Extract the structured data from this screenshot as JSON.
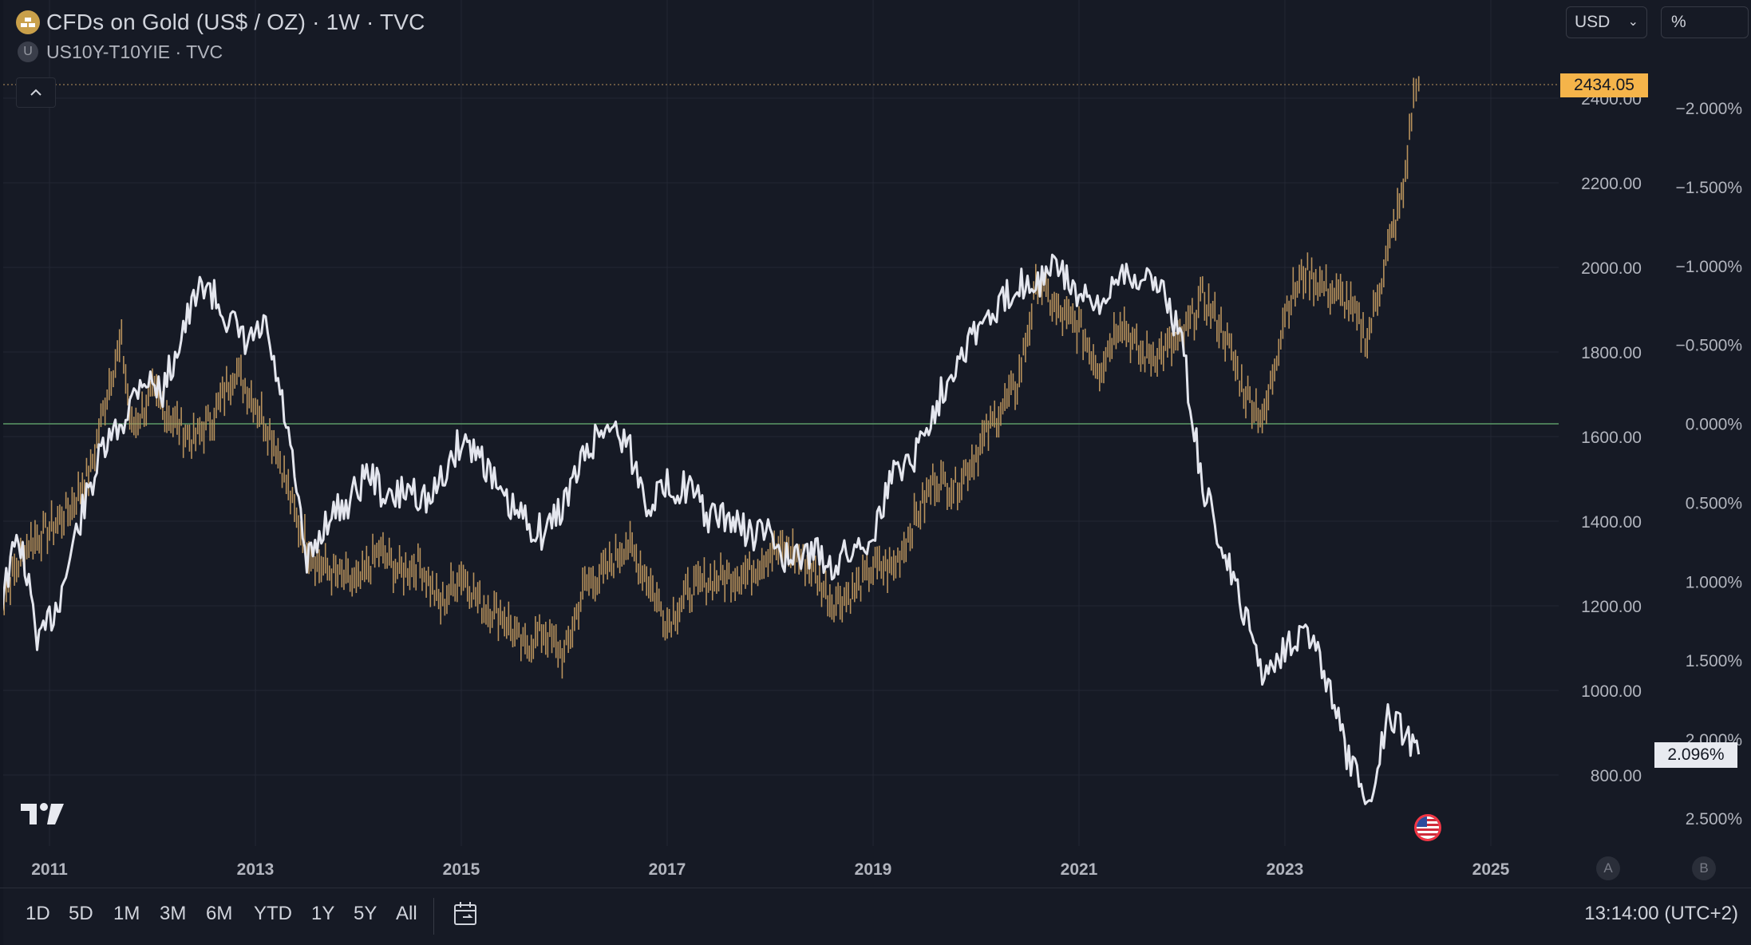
{
  "legend": {
    "main_title": "CFDs on Gold (US$ / OZ) · 1W · TVC",
    "compare_title": "US10Y-T10YIE · TVC",
    "compare_icon_letter": "U"
  },
  "toolbar": {
    "currency": "USD",
    "scale_mode": "%"
  },
  "badges": {
    "last_price": "2434.05",
    "last_percent": "2.096%"
  },
  "scale_buttons": {
    "auto": "A",
    "log": "B"
  },
  "bottom_bar": {
    "ranges": [
      "1D",
      "5D",
      "1M",
      "3M",
      "6M",
      "YTD",
      "1Y",
      "5Y",
      "All"
    ],
    "clock": "13:14:00 (UTC+2)"
  },
  "colors": {
    "background": "#161a25",
    "gold_series": "#b8925c",
    "compare_series": "#e4e6ee",
    "zero_line": "#5b9a66",
    "price_badge": "#f5b44a",
    "grid": "#232734",
    "axis_text": "#b2b5be"
  },
  "chart_data": {
    "type": "line",
    "x_ticks": [
      "2011",
      "2013",
      "2015",
      "2017",
      "2019",
      "2021",
      "2023",
      "2025"
    ],
    "price_axis": {
      "ticks": [
        800,
        1000,
        1200,
        1400,
        1600,
        1800,
        2000,
        2200,
        2400
      ],
      "tick_labels": [
        "800.00",
        "1000.00",
        "1200.00",
        "1400.00",
        "1600.00",
        "1800.00",
        "2000.00",
        "2200.00",
        "2400.00"
      ],
      "range": [
        710,
        2440
      ]
    },
    "percent_axis": {
      "ticks": [
        -2.0,
        -1.5,
        -1.0,
        -0.5,
        0.0,
        0.5,
        1.0,
        1.5,
        2.0,
        2.5
      ],
      "tick_labels": [
        "−2.000%",
        "−1.500%",
        "−1.000%",
        "−0.500%",
        "0.000%",
        "0.500%",
        "1.000%",
        "1.500%",
        "2.000%",
        "2.500%"
      ],
      "inverted": true,
      "range": [
        -2.25,
        2.8
      ]
    },
    "grid": true,
    "series": [
      {
        "name": "CFDs on Gold (US$ / OZ)",
        "style": "bars",
        "axis": "price",
        "points": [
          [
            2010.5,
            1200
          ],
          [
            2010.8,
            1350
          ],
          [
            2011.0,
            1380
          ],
          [
            2011.2,
            1430
          ],
          [
            2011.4,
            1520
          ],
          [
            2011.6,
            1750
          ],
          [
            2011.7,
            1820
          ],
          [
            2011.8,
            1620
          ],
          [
            2012.0,
            1700
          ],
          [
            2012.2,
            1640
          ],
          [
            2012.4,
            1590
          ],
          [
            2012.6,
            1650
          ],
          [
            2012.8,
            1760
          ],
          [
            2013.0,
            1680
          ],
          [
            2013.2,
            1580
          ],
          [
            2013.4,
            1400
          ],
          [
            2013.6,
            1300
          ],
          [
            2013.8,
            1270
          ],
          [
            2014.0,
            1250
          ],
          [
            2014.2,
            1330
          ],
          [
            2014.4,
            1280
          ],
          [
            2014.6,
            1300
          ],
          [
            2014.8,
            1200
          ],
          [
            2015.0,
            1280
          ],
          [
            2015.2,
            1200
          ],
          [
            2015.4,
            1180
          ],
          [
            2015.6,
            1100
          ],
          [
            2015.8,
            1140
          ],
          [
            2016.0,
            1080
          ],
          [
            2016.2,
            1250
          ],
          [
            2016.4,
            1280
          ],
          [
            2016.6,
            1350
          ],
          [
            2016.8,
            1270
          ],
          [
            2017.0,
            1160
          ],
          [
            2017.2,
            1230
          ],
          [
            2017.4,
            1260
          ],
          [
            2017.6,
            1270
          ],
          [
            2017.8,
            1280
          ],
          [
            2018.0,
            1330
          ],
          [
            2018.2,
            1330
          ],
          [
            2018.4,
            1290
          ],
          [
            2018.6,
            1210
          ],
          [
            2018.8,
            1230
          ],
          [
            2019.0,
            1290
          ],
          [
            2019.2,
            1290
          ],
          [
            2019.4,
            1400
          ],
          [
            2019.6,
            1500
          ],
          [
            2019.8,
            1480
          ],
          [
            2020.0,
            1560
          ],
          [
            2020.2,
            1650
          ],
          [
            2020.4,
            1720
          ],
          [
            2020.6,
            1970
          ],
          [
            2020.8,
            1890
          ],
          [
            2021.0,
            1860
          ],
          [
            2021.2,
            1760
          ],
          [
            2021.4,
            1880
          ],
          [
            2021.6,
            1790
          ],
          [
            2021.8,
            1800
          ],
          [
            2022.0,
            1830
          ],
          [
            2022.2,
            1930
          ],
          [
            2022.4,
            1850
          ],
          [
            2022.6,
            1710
          ],
          [
            2022.8,
            1640
          ],
          [
            2023.0,
            1900
          ],
          [
            2023.2,
            1990
          ],
          [
            2023.4,
            1950
          ],
          [
            2023.6,
            1920
          ],
          [
            2023.8,
            1830
          ],
          [
            2024.0,
            2040
          ],
          [
            2024.15,
            2180
          ],
          [
            2024.25,
            2400
          ],
          [
            2024.3,
            2434
          ]
        ]
      },
      {
        "name": "US10Y-T10YIE",
        "style": "line",
        "axis": "percent",
        "points": [
          [
            2010.5,
            1.2
          ],
          [
            2010.7,
            0.7
          ],
          [
            2010.9,
            1.4
          ],
          [
            2011.1,
            1.1
          ],
          [
            2011.3,
            0.6
          ],
          [
            2011.5,
            0.2
          ],
          [
            2011.7,
            0.0
          ],
          [
            2011.9,
            -0.3
          ],
          [
            2012.1,
            -0.2
          ],
          [
            2012.3,
            -0.6
          ],
          [
            2012.5,
            -0.9
          ],
          [
            2012.7,
            -0.7
          ],
          [
            2012.9,
            -0.5
          ],
          [
            2013.1,
            -0.6
          ],
          [
            2013.3,
            0.0
          ],
          [
            2013.5,
            0.9
          ],
          [
            2013.7,
            0.6
          ],
          [
            2013.9,
            0.5
          ],
          [
            2014.1,
            0.3
          ],
          [
            2014.3,
            0.5
          ],
          [
            2014.5,
            0.4
          ],
          [
            2014.7,
            0.5
          ],
          [
            2015.0,
            0.1
          ],
          [
            2015.2,
            0.2
          ],
          [
            2015.4,
            0.5
          ],
          [
            2015.6,
            0.6
          ],
          [
            2015.8,
            0.7
          ],
          [
            2016.0,
            0.5
          ],
          [
            2016.2,
            0.2
          ],
          [
            2016.4,
            0.0
          ],
          [
            2016.6,
            0.1
          ],
          [
            2016.8,
            0.5
          ],
          [
            2017.0,
            0.4
          ],
          [
            2017.2,
            0.4
          ],
          [
            2017.4,
            0.6
          ],
          [
            2017.6,
            0.6
          ],
          [
            2017.8,
            0.7
          ],
          [
            2018.0,
            0.7
          ],
          [
            2018.2,
            0.9
          ],
          [
            2018.4,
            0.8
          ],
          [
            2018.6,
            0.9
          ],
          [
            2018.8,
            0.8
          ],
          [
            2019.0,
            0.7
          ],
          [
            2019.2,
            0.3
          ],
          [
            2019.4,
            0.2
          ],
          [
            2019.6,
            -0.1
          ],
          [
            2019.8,
            -0.4
          ],
          [
            2020.0,
            -0.6
          ],
          [
            2020.2,
            -0.7
          ],
          [
            2020.4,
            -0.9
          ],
          [
            2020.6,
            -0.9
          ],
          [
            2020.8,
            -1.0
          ],
          [
            2021.0,
            -0.8
          ],
          [
            2021.2,
            -0.7
          ],
          [
            2021.4,
            -1.0
          ],
          [
            2021.6,
            -0.9
          ],
          [
            2021.8,
            -0.9
          ],
          [
            2022.0,
            -0.5
          ],
          [
            2022.2,
            0.4
          ],
          [
            2022.4,
            0.8
          ],
          [
            2022.6,
            1.2
          ],
          [
            2022.8,
            1.6
          ],
          [
            2023.0,
            1.4
          ],
          [
            2023.2,
            1.3
          ],
          [
            2023.4,
            1.6
          ],
          [
            2023.6,
            2.1
          ],
          [
            2023.8,
            2.4
          ],
          [
            2023.9,
            2.2
          ],
          [
            2024.0,
            1.8
          ],
          [
            2024.1,
            1.9
          ],
          [
            2024.2,
            2.0
          ],
          [
            2024.3,
            2.096
          ]
        ]
      }
    ]
  }
}
